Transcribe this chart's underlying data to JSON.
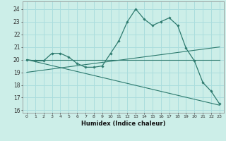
{
  "xlabel": "Humidex (Indice chaleur)",
  "bg_color": "#cceee8",
  "grid_color": "#aadddd",
  "line_color": "#2d7a6e",
  "xlim": [
    -0.5,
    23.5
  ],
  "ylim": [
    15.8,
    24.6
  ],
  "yticks": [
    16,
    17,
    18,
    19,
    20,
    21,
    22,
    23,
    24
  ],
  "xticks": [
    0,
    1,
    2,
    3,
    4,
    5,
    6,
    7,
    8,
    9,
    10,
    11,
    12,
    13,
    14,
    15,
    16,
    17,
    18,
    19,
    20,
    21,
    22,
    23
  ],
  "series1_x": [
    0,
    1,
    2,
    3,
    4,
    5,
    6,
    7,
    8,
    9,
    10,
    11,
    12,
    13,
    14,
    15,
    16,
    17,
    18,
    19,
    20,
    21,
    22,
    23
  ],
  "series1_y": [
    20.0,
    19.9,
    19.9,
    20.5,
    20.5,
    20.2,
    19.7,
    19.4,
    19.4,
    19.5,
    20.5,
    21.5,
    23.0,
    24.0,
    23.2,
    22.7,
    23.0,
    23.3,
    22.7,
    20.9,
    19.9,
    18.2,
    17.5,
    16.5
  ],
  "series2_x": [
    0,
    23
  ],
  "series2_y": [
    19.0,
    21.0
  ],
  "series3_x": [
    0,
    23
  ],
  "series3_y": [
    20.0,
    20.0
  ],
  "series4_x": [
    0,
    23
  ],
  "series4_y": [
    20.0,
    16.4
  ]
}
